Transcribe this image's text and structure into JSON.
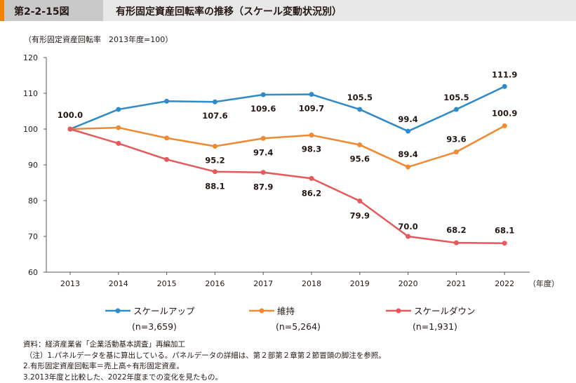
{
  "figure": {
    "number": "第2-2-15図",
    "title": "有形固定資産回転率の推移（スケール変動状況別）"
  },
  "unit_label": "（有形固定資産回転率　2013年度=100）",
  "chart_data": {
    "type": "line",
    "title": "有形固定資産回転率の推移（スケール変動状況別）",
    "ylabel": "有形固定資産回転率　2013年度=100",
    "xlabel": "（年度）",
    "x": [
      "2013",
      "2014",
      "2015",
      "2016",
      "2017",
      "2018",
      "2019",
      "2020",
      "2021",
      "2022"
    ],
    "ylim": [
      60,
      120
    ],
    "yticks": [
      "60",
      "70",
      "80",
      "90",
      "100",
      "110",
      "120"
    ],
    "legend_position": "bottom",
    "series": [
      {
        "name": "スケールアップ",
        "n": "(n=3,659)",
        "color": "#2e8bc8",
        "values": [
          100.0,
          105.5,
          107.8,
          107.6,
          109.6,
          109.7,
          105.5,
          99.4,
          105.5,
          111.9
        ],
        "labels": [
          "100.0",
          "",
          "",
          "107.6",
          "109.6",
          "109.7",
          "105.5",
          "99.4",
          "105.5",
          "111.9"
        ]
      },
      {
        "name": "維持",
        "n": "(n=5,264)",
        "color": "#ef8a33",
        "values": [
          100.0,
          100.4,
          97.5,
          95.2,
          97.4,
          98.3,
          95.6,
          89.4,
          93.6,
          100.9
        ],
        "labels": [
          "",
          "",
          "",
          "95.2",
          "97.4",
          "98.3",
          "95.6",
          "89.4",
          "93.6",
          "100.9"
        ]
      },
      {
        "name": "スケールダウン",
        "n": "(n=1,931)",
        "color": "#e5595a",
        "values": [
          100.0,
          96.0,
          91.5,
          88.1,
          87.9,
          86.2,
          79.9,
          70.0,
          68.2,
          68.1
        ],
        "labels": [
          "",
          "",
          "",
          "88.1",
          "87.9",
          "86.2",
          "79.9",
          "70.0",
          "68.2",
          "68.1"
        ]
      }
    ]
  },
  "notes": [
    "資料：経済産業省「企業活動基本調査」再編加工",
    "（注）1.パネルデータを基に算出している。パネルデータの詳細は、第２部第２章第２節冒頭の脚注を参照。",
    "2.有形固定資産回転率＝売上高÷有形固定資産。",
    "3.2013年度と比較した、2022年度までの変化を見たもの。"
  ]
}
